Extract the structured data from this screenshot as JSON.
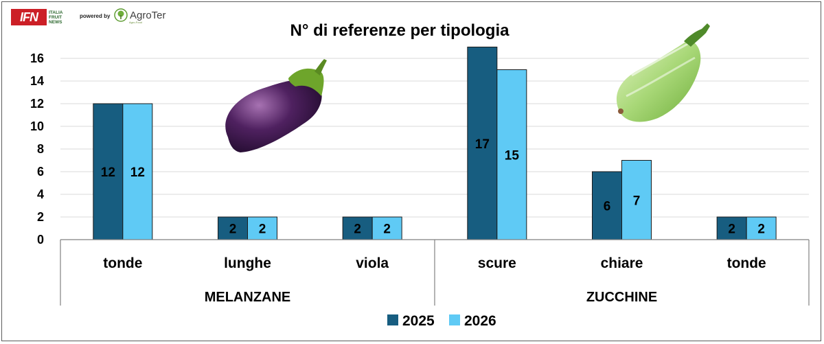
{
  "branding": {
    "ifn_logo": "IFN",
    "ifn_sub": [
      "ITALIA",
      "FRUIT",
      "NEWS"
    ],
    "powered_by": "powered by",
    "agroter_name": "AgroTer",
    "agroter_tag": "Agro-Food"
  },
  "colors": {
    "s2025": "#175d80",
    "s2026": "#5fcaf5",
    "grid": "#d9d9d9",
    "axis": "#808080"
  },
  "chart_data": {
    "type": "bar",
    "title": "N° di referenze per tipologia",
    "categories": [
      "tonde",
      "lunghe",
      "viola",
      "scure",
      "chiare",
      "tonde"
    ],
    "groups": [
      {
        "label": "MELANZANE",
        "categories": [
          "tonde",
          "lunghe",
          "viola"
        ]
      },
      {
        "label": "ZUCCHINE",
        "categories": [
          "scure",
          "chiare",
          "tonde"
        ]
      }
    ],
    "series": [
      {
        "name": "2025",
        "values": [
          12,
          2,
          2,
          17,
          6,
          2
        ]
      },
      {
        "name": "2026",
        "values": [
          12,
          2,
          2,
          15,
          7,
          2
        ]
      }
    ],
    "ylim": [
      0,
      16
    ],
    "yticks": [
      "0",
      "2",
      "4",
      "6",
      "8",
      "10",
      "12",
      "14",
      "16"
    ],
    "grid": true,
    "legend": "bottom",
    "data_labels": true
  }
}
